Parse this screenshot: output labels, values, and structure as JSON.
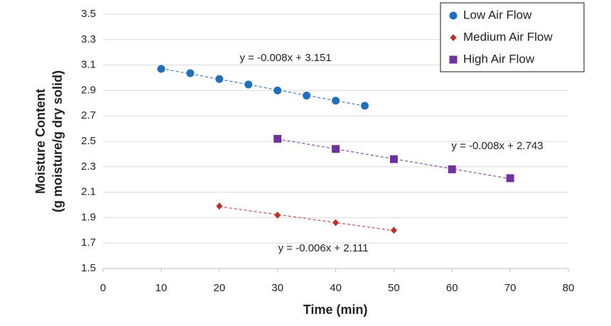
{
  "chart_data": {
    "type": "scatter",
    "xlabel": "Time (min)",
    "ylabel": [
      "Moisture Content",
      "(g moisture/g dry solid)"
    ],
    "xlim": [
      0,
      80
    ],
    "xticks": [
      0,
      10,
      20,
      30,
      40,
      50,
      60,
      70,
      80
    ],
    "ylim": [
      1.5,
      3.5
    ],
    "yticks": [
      1.5,
      1.7,
      1.9,
      2.1,
      2.3,
      2.5,
      2.7,
      2.9,
      3.1,
      3.3,
      3.5
    ],
    "grid": true,
    "legend": "upper right",
    "trendline": "dashed",
    "series": [
      {
        "name": "Low Air Flow",
        "color": "#1f6fbf",
        "marker": "circle",
        "x": [
          10,
          15,
          20,
          25,
          30,
          35,
          40,
          45
        ],
        "values": [
          3.07,
          3.036,
          2.99,
          2.947,
          2.9,
          2.86,
          2.82,
          2.78
        ]
      },
      {
        "name": "Medium Air Flow",
        "color": "#c0302a",
        "marker": "diamond",
        "x": [
          20,
          30,
          40,
          50
        ],
        "values": [
          1.99,
          1.92,
          1.86,
          1.8
        ]
      },
      {
        "name": "High Air Flow",
        "color": "#7030a0",
        "marker": "square",
        "x": [
          30,
          40,
          50,
          60,
          70
        ],
        "values": [
          2.52,
          2.44,
          2.36,
          2.28,
          2.21
        ]
      }
    ],
    "annotations": [
      "y = -0.008x + 3.151",
      "y = -0.008x + 2.743",
      "y = -0.006x + 2.111"
    ]
  }
}
